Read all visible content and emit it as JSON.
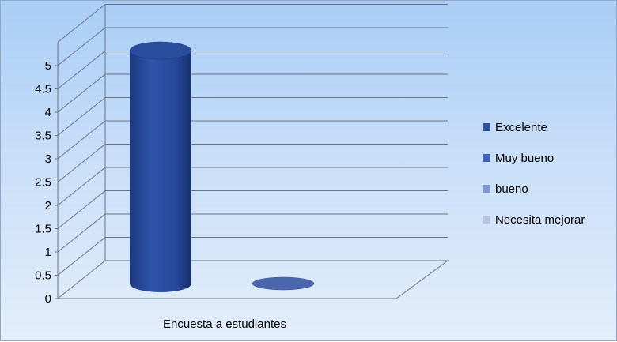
{
  "chart_data": {
    "type": "bar",
    "categories": [
      "Encuesta a estudiantes"
    ],
    "series": [
      {
        "name": "Excelente",
        "values": [
          5
        ],
        "color": "#2e4f9c"
      },
      {
        "name": "Muy bueno",
        "values": [
          0
        ],
        "color": "#3d62b6"
      },
      {
        "name": "bueno",
        "values": [
          0
        ],
        "color": "#7f97d1"
      },
      {
        "name": "Necesita mejorar",
        "values": [
          0
        ],
        "color": "#b8c4e2"
      }
    ],
    "yticks": [
      "0",
      "0.5",
      "1",
      "1.5",
      "2",
      "2.5",
      "3",
      "3.5",
      "4",
      "4.5",
      "5"
    ],
    "ylim": [
      0,
      5
    ],
    "title": "",
    "xlabel": "",
    "ylabel": "",
    "grid": true,
    "legend_position": "right",
    "style": "3d-cylinder"
  }
}
